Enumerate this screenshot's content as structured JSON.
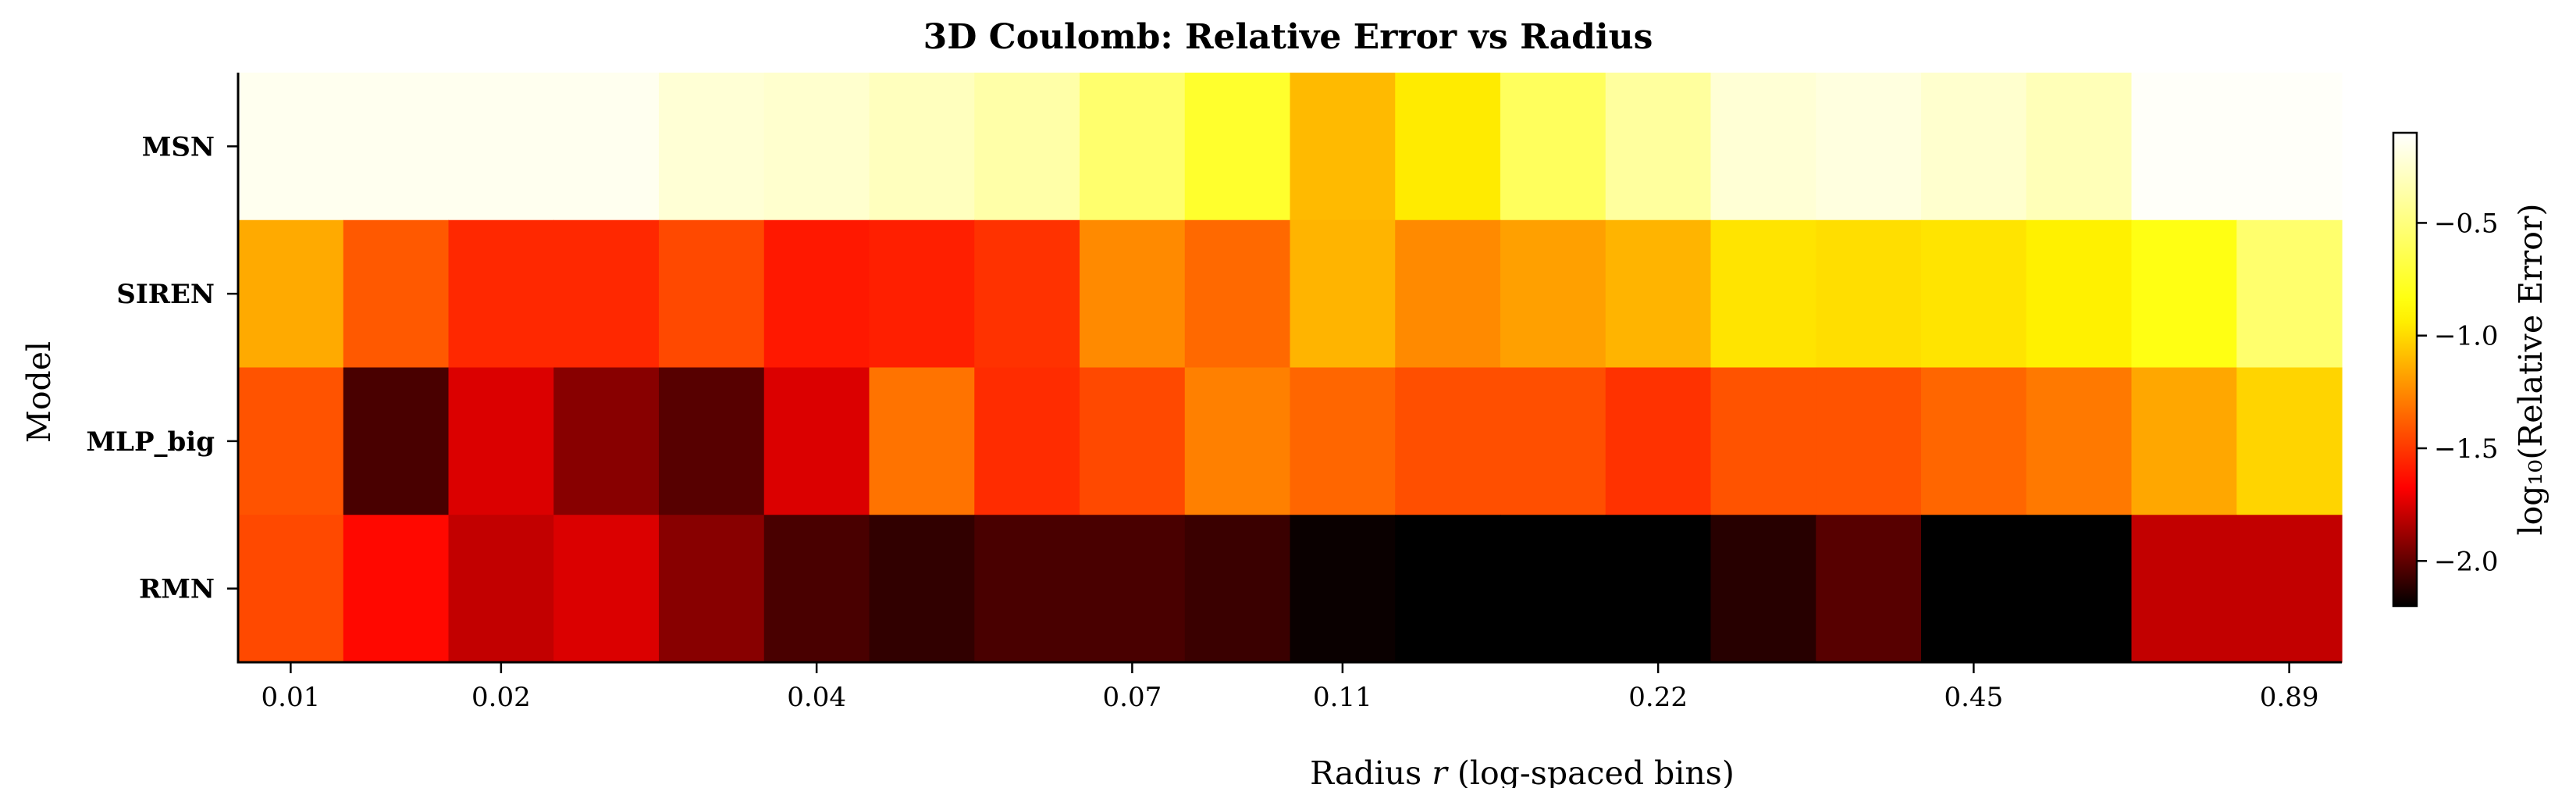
{
  "chart_data": {
    "type": "heatmap",
    "title": "3D Coulomb: Relative Error vs Radius",
    "xlabel": "Radius r (log-spaced bins)",
    "ylabel": "Model",
    "colorbar_label": "log₁₀(Relative Error)",
    "colormap": "hot_r",
    "color_range": [
      -2.2,
      -0.1
    ],
    "colorbar_ticks": [
      -0.5,
      -1.0,
      -1.5,
      -2.0
    ],
    "rows": [
      {
        "name": "MSN",
        "color": "#4472b0"
      },
      {
        "name": "SIREN",
        "color": "#a0144a"
      },
      {
        "name": "MLP_big",
        "color": "#d62728"
      },
      {
        "name": "RMN",
        "color": "#2a9d4a"
      }
    ],
    "x_ticks": [
      {
        "label": "0.01",
        "bin": 0
      },
      {
        "label": "0.02",
        "bin": 2
      },
      {
        "label": "0.04",
        "bin": 5
      },
      {
        "label": "0.07",
        "bin": 8
      },
      {
        "label": "0.11",
        "bin": 10
      },
      {
        "label": "0.22",
        "bin": 13
      },
      {
        "label": "0.45",
        "bin": 16
      },
      {
        "label": "0.89",
        "bin": 19
      }
    ],
    "values": [
      [
        -0.15,
        -0.15,
        -0.15,
        -0.15,
        -0.23,
        -0.25,
        -0.3,
        -0.37,
        -0.55,
        -0.75,
        -1.1,
        -0.95,
        -0.6,
        -0.4,
        -0.23,
        -0.2,
        -0.25,
        -0.32,
        -0.12,
        -0.12
      ],
      [
        -1.15,
        -1.4,
        -1.55,
        -1.55,
        -1.45,
        -1.6,
        -1.58,
        -1.52,
        -1.25,
        -1.35,
        -1.12,
        -1.25,
        -1.18,
        -1.12,
        -0.97,
        -0.99,
        -0.97,
        -0.93,
        -0.83,
        -0.55
      ],
      [
        -1.42,
        -2.05,
        -1.75,
        -1.92,
        -2.02,
        -1.75,
        -1.32,
        -1.54,
        -1.45,
        -1.28,
        -1.36,
        -1.43,
        -1.43,
        -1.52,
        -1.42,
        -1.42,
        -1.36,
        -1.3,
        -1.16,
        -1.02
      ],
      [
        -1.45,
        -1.65,
        -1.8,
        -1.75,
        -1.92,
        -2.05,
        -2.1,
        -2.05,
        -2.05,
        -2.08,
        -2.18,
        -2.3,
        -2.3,
        -2.3,
        -2.12,
        -2.02,
        -2.3,
        -2.3,
        -1.8,
        -1.8
      ]
    ]
  }
}
